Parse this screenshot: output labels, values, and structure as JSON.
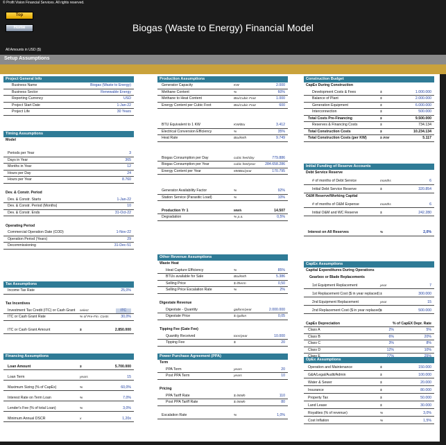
{
  "app": {
    "copyright": "© Profit Vision Financial Services. All rights reserved.",
    "title": "Biogas (Waste to Energy) Financial Model",
    "amounts_note": "All Amounts in  USD ($)",
    "section": "Setup Assumptions"
  },
  "nav": {
    "top": "Top",
    "home": "Home"
  },
  "colors": {
    "header_teal": "#2f7b96",
    "gold_bar": "#c9a23c",
    "top_button": "#ffd54a",
    "value_blue": "#1f3fa0"
  },
  "project": {
    "title": "Project General Info",
    "rows": [
      {
        "label": "Business Name",
        "value": "Biogas (Waste to Energy)"
      },
      {
        "label": "Business Sector",
        "value": "Renewable Energy"
      },
      {
        "label": "Reporting Currency",
        "value": "USD"
      },
      {
        "label": "Project Start Date",
        "value": "1-Jan-22"
      },
      {
        "label": "Project Life",
        "value": "30 Years"
      }
    ]
  },
  "timing": {
    "title": "Timing Assumptions",
    "model": "Model",
    "rows": [
      {
        "label": "Periods per Year",
        "value": "3"
      },
      {
        "label": "Days in Year",
        "value": "365"
      },
      {
        "label": "Months in Year",
        "value": "12"
      },
      {
        "label": "Hours per Day",
        "value": "24"
      },
      {
        "label": "Hours per Year",
        "value": "8.760"
      }
    ],
    "dev_title": "Dev. & Constr. Period",
    "dev": [
      {
        "label": "Dev. & Constr. Starts",
        "value": "1-Jan-22"
      },
      {
        "label": "Dev. & Constr. Period (Months)",
        "value": "10"
      },
      {
        "label": "Dev. & Constr. Ends",
        "value": "31-Oct-22"
      }
    ],
    "op_title": "Operating Period",
    "op": [
      {
        "label": "Commercial Operation Date (COD)",
        "value": "1-Nov-22"
      },
      {
        "label": "Operation Period (Years)",
        "value": "29"
      },
      {
        "label": "Decommissioning",
        "value": "31-Dec-51"
      }
    ]
  },
  "tax": {
    "title": "Tax Assumptions",
    "income": {
      "label": "Income Tax Rate",
      "value": "25,0%"
    },
    "incentives": "Tax Incentives",
    "itc_select": {
      "label": "Investment Tax Credit (ITC) or Cash Grant",
      "unit": "select",
      "value": "ITC"
    },
    "itc_rate": {
      "label": "ITC or Cash Grant Rate",
      "unit": "% of Pre-Fin. Costs",
      "value": "30,0%"
    },
    "itc_amount": {
      "label": "ITC or Cash Grant Amount",
      "unit": "$",
      "value": "2.850.000"
    }
  },
  "financing": {
    "title": "Financing Assumptions",
    "rows": [
      {
        "label": "Loan Amount",
        "unit": "$",
        "value": "5.700.000",
        "bold": true
      },
      {
        "label": "Loan Term",
        "unit": "years",
        "value": "15"
      },
      {
        "label": "Maximum Sizing (% of CapEx)",
        "unit": "%",
        "value": "60,0%"
      },
      {
        "label": "Interest Rate on Term Loan",
        "unit": "%",
        "value": "7,0%"
      },
      {
        "label": "Lender's Fee (% of total Loan)",
        "unit": "%",
        "value": "3,0%"
      },
      {
        "label": "Minimum Annual DSCR",
        "unit": "x",
        "value": "1,20x"
      }
    ]
  },
  "production": {
    "title": "Production Assumptions",
    "rows": [
      {
        "label": "Generator Capacity",
        "unit": "KW",
        "value": "2.000"
      },
      {
        "label": "Methane Content",
        "unit": "%",
        "value": "60%"
      },
      {
        "label": "Methane to Heat Content",
        "unit": "Btu/Cubic Foot",
        "value": "1.000"
      },
      {
        "label": "Energy Content per Cubic Foot",
        "unit": "Btu/Cubic Foot",
        "value": "600"
      }
    ],
    "rows2": [
      {
        "label": "BTU Equivalent to 1 KW",
        "unit": "KW/Btu",
        "value": "3.412"
      },
      {
        "label": "Electrical Conversion Efficiency",
        "unit": "%",
        "value": "35%"
      },
      {
        "label": "Heat Rate",
        "unit": "Btu/kWh",
        "value": "9.749"
      }
    ],
    "rows3": [
      {
        "label": "Biogas Consumption per Day",
        "unit": "cubic feet/day",
        "value": "779.886"
      },
      {
        "label": "Biogas Consumption per Year",
        "unit": "cubic feet/year",
        "value": "284.658.286"
      },
      {
        "label": "Energy Content per Year",
        "unit": "MMBtu/year",
        "value": "170.795"
      }
    ],
    "rows4": [
      {
        "label": "Generator Availability Factor",
        "unit": "%",
        "value": "92%"
      },
      {
        "label": "Station Service (Parasitic Load)",
        "unit": "%",
        "value": "10%"
      }
    ],
    "yr1": {
      "label": "Production Yr 1",
      "unit": "MWh",
      "value": "14.507"
    },
    "degradation": {
      "label": "Degradation",
      "unit": "% p.a.",
      "value": "0,5%"
    }
  },
  "other_rev": {
    "title": "Other Revenue Assumptions",
    "waste_heat": "Waste Heat",
    "rows": [
      {
        "label": "Heat Capture Efficiency",
        "unit": "%",
        "value": "85%"
      },
      {
        "label": "BTUs available for Sale",
        "unit": "Btu/kWh",
        "value": "5.386"
      },
      {
        "label": "Selling Price",
        "unit": "$ /therm",
        "value": "0,50"
      },
      {
        "label": "Selling Price Escalation Rate",
        "unit": "%",
        "value": "2%"
      }
    ],
    "digestate": "Digestate Revenue",
    "drows": [
      {
        "label": "Digestate - Quantity",
        "unit": "gallons/year",
        "value": "2.000.000"
      },
      {
        "label": "Digestate Price",
        "unit": "$ /gallon",
        "value": "0,05"
      }
    ],
    "tipping": "Tipping Fee (Gate Fee)",
    "trows": [
      {
        "label": "Quantity Received",
        "unit": "tons/year",
        "value": "10.000"
      },
      {
        "label": "Tipping Fee",
        "unit": "$",
        "value": "20"
      }
    ]
  },
  "ppa": {
    "title": "Power Purchase Agreement (PPA)",
    "term": "Term",
    "terms": [
      {
        "label": "PPA Term",
        "unit": "years",
        "value": "20"
      },
      {
        "label": "Post PPA Term",
        "unit": "years",
        "value": "10"
      }
    ],
    "pricing": "Pricing",
    "prices": [
      {
        "label": "PPA Tariff Rate",
        "unit": "$ /MWh",
        "value": "110"
      },
      {
        "label": "Post PPA Tariff Rate",
        "unit": "$ /MWh",
        "value": "80"
      }
    ],
    "escalation": {
      "label": "Escalation Rate",
      "unit": "%",
      "value": "1,0%"
    }
  },
  "construction": {
    "title": "Construction Budget",
    "capex": "CapEx During Construction",
    "rows": [
      {
        "label": "Development Costs & Fees",
        "unit": "$",
        "value": "1.000.000"
      },
      {
        "label": "Balance of Plant",
        "unit": "$",
        "value": "2.000.000"
      },
      {
        "label": "Generation Equipment",
        "unit": "$",
        "value": "6.000.000"
      },
      {
        "label": "Interconnection",
        "unit": "$",
        "value": "500.000"
      }
    ],
    "prefin": {
      "label": "Total Costs Pre-Financing",
      "unit": "$",
      "value": "9.500.000"
    },
    "reserves": {
      "label": "Reserves & Financing Costs",
      "unit": "$",
      "value": "734.134"
    },
    "total": {
      "label": "Total Construction Costs",
      "unit": "$",
      "value": "10.234.134"
    },
    "perkw": {
      "label": "Total Construction Costs (per KW)",
      "unit": "$ /KW",
      "value": "5.117"
    }
  },
  "reserve": {
    "title": "Initial Funding of Reserve Accounts",
    "debt": "Debt Service Reserve",
    "drows": [
      {
        "label": "# of months of Debt Service",
        "unit": "months",
        "value": "6"
      },
      {
        "label": "Initial Debt Service Reserve",
        "unit": "$",
        "value": "320.854"
      }
    ],
    "om": "O&M Reserve/Working Capital",
    "orows": [
      {
        "label": "# of months of O&M Expense",
        "unit": "months",
        "value": "6"
      },
      {
        "label": "Initial O&M and WC Reserve",
        "unit": "$",
        "value": "242.280"
      }
    ],
    "interest": {
      "label": "Interest on All Reserves",
      "unit": "%",
      "value": "2,0%"
    }
  },
  "capex_ops": {
    "title": "CapEx Assumptions",
    "cap_ops": "Capital Expenditures During Operations",
    "gearbox": "Gearbox or Blade Replacements",
    "rows": [
      {
        "label": "1st Equipment Replacement",
        "unit": "year",
        "value": "7"
      },
      {
        "label": "1st Replacement Cost  ($ in year replaced)",
        "unit": "$",
        "value": "300.000"
      },
      {
        "label": "2nd Equipment Replacement",
        "unit": "year",
        "value": "15"
      },
      {
        "label": "2nd Replacement Cost  ($ in year replaced)",
        "unit": "$",
        "value": "500.000"
      }
    ],
    "depr_title": "CapEx Depreciation",
    "col1": "% of CapEX",
    "col2": "Depr. Rate",
    "depr": [
      {
        "label": "Class A",
        "a": "2%",
        "b": "5%"
      },
      {
        "label": "Class B",
        "a": "6%",
        "b": "20%"
      },
      {
        "label": "Class C",
        "a": "3%",
        "b": "8%"
      },
      {
        "label": "Class D",
        "a": "12%",
        "b": "10%"
      },
      {
        "label": "Class E",
        "a": "77%",
        "b": "25%"
      }
    ]
  },
  "opex": {
    "title": "OpEx Assumptions",
    "rows": [
      {
        "label": "Operation and Maintenance",
        "unit": "$",
        "value": "150.000"
      },
      {
        "label": "G&A/Legal/Audit/Admin",
        "unit": "$",
        "value": "100.000"
      },
      {
        "label": "Water & Sewer",
        "unit": "$",
        "value": "20.000"
      },
      {
        "label": "Insurance",
        "unit": "$",
        "value": "80.000"
      },
      {
        "label": "Property Tax",
        "unit": "$",
        "value": "50.000"
      },
      {
        "label": "Land Lease",
        "unit": "$",
        "value": "30.000"
      },
      {
        "label": "Royalties (% of revenue)",
        "unit": "%",
        "value": "3,0%"
      },
      {
        "label": "Cost Inflation",
        "unit": "%",
        "value": "1,5%"
      }
    ]
  }
}
